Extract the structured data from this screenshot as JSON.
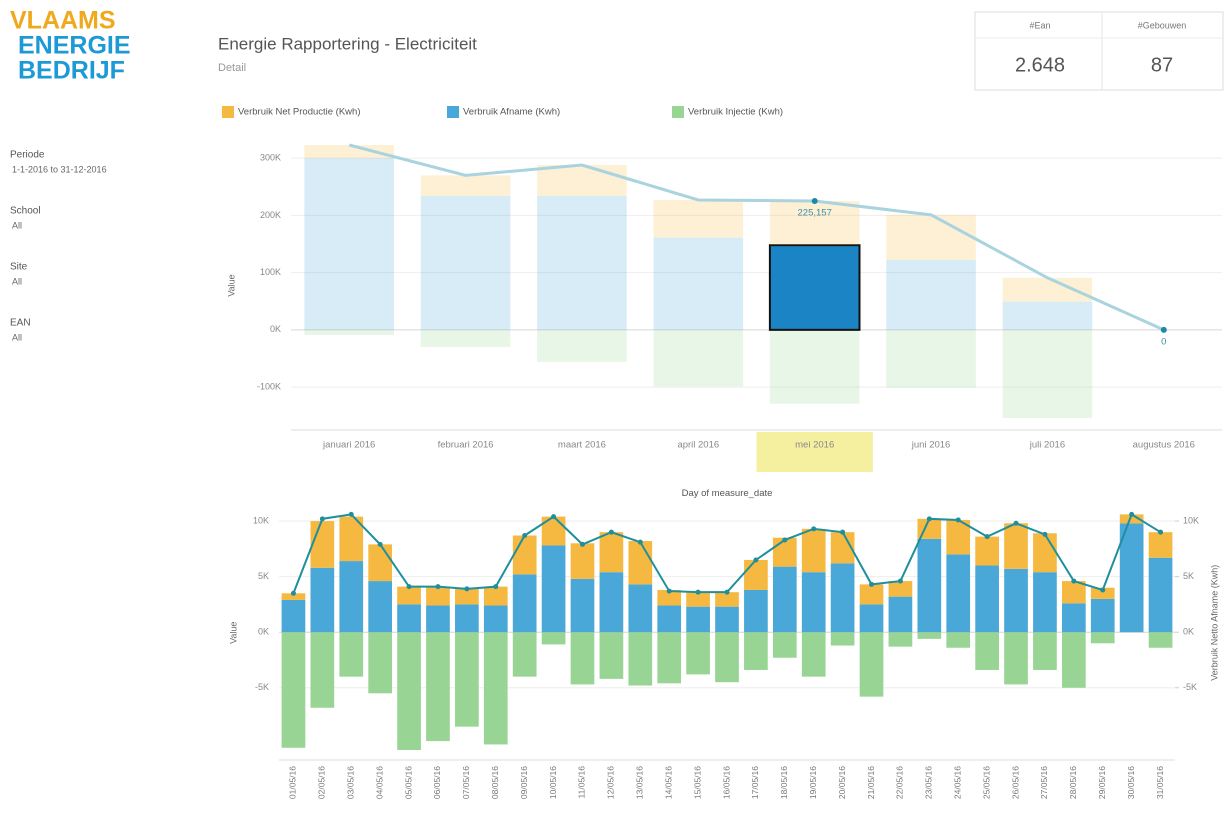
{
  "logo": {
    "lines": [
      "VLAAMS",
      "ENERGIE",
      "BEDRIJF"
    ]
  },
  "filters": [
    {
      "label": "Periode",
      "value": "1-1-2016 to 31-12-2016"
    },
    {
      "label": "School",
      "value": "All"
    },
    {
      "label": "Site",
      "value": "All"
    },
    {
      "label": "EAN",
      "value": "All"
    }
  ],
  "header": {
    "title": "Energie Rapportering - Electriciteit",
    "subtitle": "Detail"
  },
  "kpis": [
    {
      "label": "#Ean",
      "value": "2.648"
    },
    {
      "label": "#Gebouwen",
      "value": "87"
    }
  ],
  "chart_data": [
    {
      "type": "bar",
      "stacked": true,
      "y_label": "Value",
      "categories": [
        "januari 2016",
        "februari 2016",
        "maart 2016",
        "april 2016",
        "mei 2016",
        "juni 2016",
        "juli 2016",
        "augustus 2016"
      ],
      "series": [
        {
          "name": "Verbruik Net Productie (Kwh)",
          "color": "#f5b942",
          "values": [
            23000,
            36000,
            54000,
            66000,
            77157,
            79000,
            42000,
            0
          ]
        },
        {
          "name": "Verbruik Afname (Kwh)",
          "color": "#4aa8d8",
          "values": [
            300000,
            234000,
            234000,
            161000,
            148000,
            122000,
            49000,
            0
          ]
        },
        {
          "name": "Verbruik Injectie (Kwh)",
          "color": "#98d594",
          "values": [
            -9000,
            -30000,
            -56000,
            -99000,
            -129000,
            -101000,
            -154000,
            0
          ]
        }
      ],
      "line": {
        "color": "#a9d3df",
        "values": [
          323000,
          270000,
          288000,
          227000,
          225157,
          201000,
          91000,
          0
        ],
        "value_labels": [
          null,
          null,
          null,
          null,
          "225,157",
          null,
          null,
          "0"
        ]
      },
      "selected_index": 4,
      "selected_series": 1,
      "ylim": [
        -175000,
        330000
      ],
      "yticks": [
        {
          "value": 300000,
          "label": "300K"
        },
        {
          "value": 200000,
          "label": "200K"
        },
        {
          "value": 100000,
          "label": "100K"
        },
        {
          "value": 0,
          "label": "0K"
        },
        {
          "value": -100000,
          "label": "-100K"
        }
      ],
      "grid": true,
      "legend": "top"
    },
    {
      "type": "bar",
      "stacked": true,
      "x_label": "Day of measure_date",
      "y_label": "Value",
      "y2_label": "Verbruik Netto Afname (Kwh)",
      "categories": [
        "01/05/16",
        "02/05/16",
        "03/05/16",
        "04/05/16",
        "05/05/16",
        "06/05/16",
        "07/05/16",
        "08/05/16",
        "09/05/16",
        "10/05/16",
        "11/05/16",
        "12/05/16",
        "13/05/16",
        "14/05/16",
        "15/05/16",
        "16/05/16",
        "17/05/16",
        "18/05/16",
        "19/05/16",
        "20/05/16",
        "21/05/16",
        "22/05/16",
        "23/05/16",
        "24/05/16",
        "25/05/16",
        "26/05/16",
        "27/05/16",
        "28/05/16",
        "29/05/16",
        "30/05/16",
        "31/05/16"
      ],
      "series": [
        {
          "name": "Verbruik Net Productie (Kwh)",
          "color": "#f5b942",
          "values": [
            600,
            4200,
            4000,
            3300,
            1600,
            1700,
            1400,
            1700,
            3500,
            2600,
            3200,
            3600,
            3900,
            1400,
            1300,
            1300,
            2700,
            2600,
            3900,
            2800,
            1800,
            1400,
            1800,
            3100,
            2600,
            4100,
            3500,
            2000,
            1000,
            800,
            2300
          ]
        },
        {
          "name": "Verbruik Afname (Kwh)",
          "color": "#4aa8d8",
          "values": [
            2900,
            5800,
            6400,
            4600,
            2500,
            2400,
            2500,
            2400,
            5200,
            7800,
            4800,
            5400,
            4300,
            2400,
            2300,
            2300,
            3800,
            5900,
            5400,
            6200,
            2500,
            3200,
            8400,
            7000,
            6000,
            5700,
            5400,
            2600,
            3000,
            9800,
            6700
          ]
        },
        {
          "name": "Verbruik Injectie (Kwh)",
          "color": "#98d594",
          "values": [
            -10400,
            -6800,
            -4000,
            -5500,
            -10600,
            -9800,
            -8500,
            -10100,
            -4000,
            -1100,
            -4700,
            -4200,
            -4800,
            -4600,
            -3800,
            -4500,
            -3400,
            -2300,
            -4000,
            -1200,
            -5800,
            -1300,
            -600,
            -1400,
            -3400,
            -4700,
            -3400,
            -5000,
            -1000,
            0,
            -1400
          ]
        }
      ],
      "line": {
        "color": "#1f8f9c",
        "axis": "y2",
        "values": [
          3500,
          10200,
          10600,
          7900,
          4100,
          4100,
          3900,
          4100,
          8700,
          10400,
          7900,
          9000,
          8100,
          3700,
          3600,
          3600,
          6500,
          8300,
          9300,
          9000,
          4300,
          4600,
          10200,
          10100,
          8600,
          9800,
          8800,
          4600,
          3800,
          10600,
          9000
        ]
      },
      "ylim": [
        -11500,
        11400
      ],
      "yticks": [
        {
          "value": 10000,
          "label": "10K"
        },
        {
          "value": 5000,
          "label": "5K"
        },
        {
          "value": 0,
          "label": "0K"
        },
        {
          "value": -5000,
          "label": "-5K"
        }
      ],
      "y2lim": [
        -11500,
        11400
      ],
      "y2ticks": [
        {
          "value": 10000,
          "label": "10K"
        },
        {
          "value": 5000,
          "label": "5K"
        },
        {
          "value": 0,
          "label": "0K"
        },
        {
          "value": -5000,
          "label": "-5K"
        }
      ],
      "grid": true
    }
  ]
}
